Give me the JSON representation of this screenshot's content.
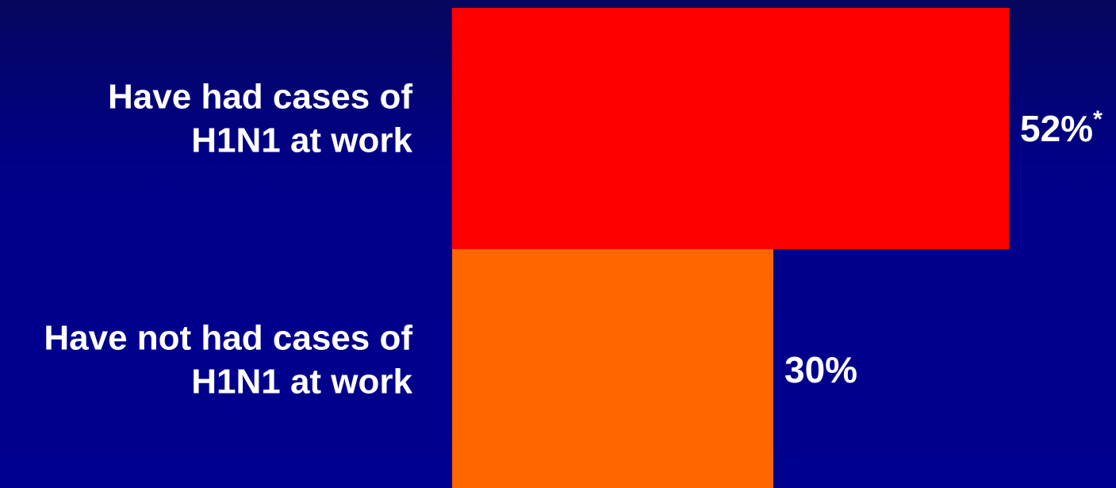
{
  "chart_data": {
    "type": "bar",
    "orientation": "horizontal",
    "categories": [
      [
        "Have had cases of",
        "H1N1 at work"
      ],
      [
        "Have not had cases of",
        "H1N1 at work"
      ]
    ],
    "values": [
      52,
      30
    ],
    "value_labels": [
      "52%",
      "30%"
    ],
    "value_label_marks": [
      "*",
      ""
    ],
    "colors": [
      "#ff0000",
      "#ff6600"
    ],
    "background": "#00008b",
    "xlim": [
      0,
      52
    ],
    "grid": false,
    "legend": "none",
    "title": "",
    "xlabel": "",
    "ylabel": ""
  }
}
